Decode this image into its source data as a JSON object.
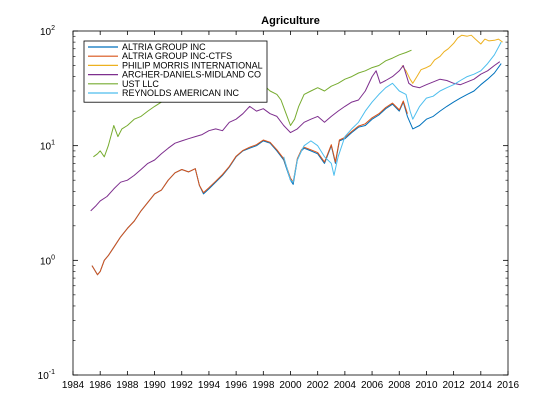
{
  "chart_data": {
    "type": "line",
    "title": "Agriculture",
    "xlabel": "",
    "ylabel": "",
    "y_scale": "log",
    "xlim": [
      1984,
      2016
    ],
    "ylim": [
      0.1,
      100
    ],
    "grid": false,
    "legend_position": "top-left",
    "x_ticks": [
      "1984",
      "1986",
      "1988",
      "1990",
      "1992",
      "1994",
      "1996",
      "1998",
      "2000",
      "2002",
      "2004",
      "2006",
      "2008",
      "2010",
      "2012",
      "2014",
      "2016"
    ],
    "y_ticks": [
      {
        "value": 0.1,
        "base": "10",
        "exp": "-1"
      },
      {
        "value": 1,
        "base": "10",
        "exp": "0"
      },
      {
        "value": 10,
        "base": "10",
        "exp": "1"
      },
      {
        "value": 100,
        "base": "10",
        "exp": "2"
      }
    ],
    "series": [
      {
        "name": "ALTRIA GROUP INC",
        "color": "#0072BD",
        "x": [
          1985.4,
          1985.8,
          1986.0,
          1986.3,
          1986.6,
          1987.0,
          1987.5,
          1988.0,
          1988.5,
          1989.0,
          1989.5,
          1990.0,
          1990.5,
          1991.0,
          1991.5,
          1992.0,
          1992.5,
          1993.0,
          1993.3,
          1993.6,
          1994.0,
          1994.5,
          1995.0,
          1995.5,
          1996.0,
          1996.5,
          1997.0,
          1997.5,
          1998.0,
          1998.5,
          1999.0,
          1999.5,
          2000.0,
          2000.2,
          2000.5,
          2000.8,
          2001.0,
          2001.5,
          2002.0,
          2002.5,
          2003.0,
          2003.3,
          2003.6,
          2004.0,
          2004.5,
          2005.0,
          2005.5,
          2006.0,
          2006.5,
          2007.0,
          2007.5,
          2008.0,
          2008.3,
          2008.6,
          2009.0,
          2009.5,
          2010.0,
          2010.5,
          2011.0,
          2011.5,
          2012.0,
          2012.5,
          2013.0,
          2013.5,
          2014.0,
          2014.5,
          2015.0,
          2015.5
        ],
        "values": [
          0.9,
          0.75,
          0.8,
          1.0,
          1.1,
          1.3,
          1.6,
          1.9,
          2.2,
          2.7,
          3.2,
          3.8,
          4.1,
          5.0,
          5.8,
          6.2,
          5.9,
          6.3,
          4.5,
          3.8,
          4.2,
          4.8,
          5.5,
          6.5,
          8.0,
          9.0,
          9.5,
          10.0,
          11.0,
          10.5,
          9.0,
          7.5,
          5.0,
          4.6,
          7.5,
          9.0,
          9.5,
          9.0,
          8.5,
          7.0,
          10.0,
          7.0,
          11.0,
          11.5,
          13.0,
          14.5,
          15.0,
          17.0,
          18.5,
          21.0,
          23.0,
          20.0,
          24.0,
          18.0,
          14.0,
          15.0,
          17.0,
          18.0,
          20.0,
          22.0,
          24.0,
          26.0,
          28.0,
          30.0,
          34.0,
          38.0,
          43.0,
          52.0
        ]
      },
      {
        "name": "ALTRIA GROUP INC-CTFS",
        "color": "#D95319",
        "x": [
          1985.4,
          1985.8,
          1986.0,
          1986.3,
          1986.6,
          1987.0,
          1987.5,
          1988.0,
          1988.5,
          1989.0,
          1989.5,
          1990.0,
          1990.5,
          1991.0,
          1991.5,
          1992.0,
          1992.5,
          1993.0,
          1993.3,
          1993.6,
          1994.0,
          1994.5,
          1995.0,
          1995.5,
          1996.0,
          1996.5,
          1997.0,
          1997.5,
          1998.0,
          1998.5,
          1999.0,
          1999.5,
          2000.0,
          2000.2,
          2000.5,
          2000.8,
          2001.0,
          2001.5,
          2002.0,
          2002.5,
          2003.0,
          2003.3,
          2003.6,
          2004.0,
          2004.5,
          2005.0,
          2005.5,
          2006.0,
          2006.5,
          2007.0,
          2007.5,
          2008.0,
          2008.3,
          2008.6
        ],
        "values": [
          0.9,
          0.75,
          0.8,
          1.0,
          1.1,
          1.3,
          1.6,
          1.9,
          2.2,
          2.7,
          3.2,
          3.8,
          4.1,
          5.0,
          5.8,
          6.2,
          5.9,
          6.3,
          4.5,
          3.9,
          4.3,
          4.9,
          5.6,
          6.6,
          8.1,
          9.1,
          9.7,
          10.2,
          11.2,
          10.7,
          9.2,
          7.7,
          5.2,
          4.8,
          7.7,
          9.2,
          9.7,
          9.2,
          8.7,
          7.2,
          10.2,
          7.2,
          11.2,
          11.8,
          13.3,
          14.8,
          15.5,
          17.5,
          19.0,
          21.5,
          23.5,
          20.5,
          24.5,
          19.0
        ]
      },
      {
        "name": "PHILIP MORRIS INTERNATIONAL",
        "color": "#EDB120",
        "x": [
          2008.2,
          2008.5,
          2008.8,
          2009.0,
          2009.3,
          2009.6,
          2010.0,
          2010.3,
          2010.6,
          2011.0,
          2011.3,
          2011.6,
          2012.0,
          2012.3,
          2012.6,
          2013.0,
          2013.3,
          2013.6,
          2014.0,
          2014.3,
          2014.6,
          2015.0,
          2015.3,
          2015.6
        ],
        "values": [
          50.0,
          45.0,
          38.0,
          35.0,
          40.0,
          46.0,
          48.0,
          50.0,
          56.0,
          60.0,
          66.0,
          70.0,
          78.0,
          87.0,
          92.0,
          90.0,
          92.0,
          85.0,
          77.0,
          85.0,
          82.0,
          83.0,
          85.0,
          80.0
        ]
      },
      {
        "name": "ARCHER-DANIELS-MIDLAND CO",
        "color": "#7E2F8E",
        "x": [
          1985.3,
          1985.7,
          1986.0,
          1986.5,
          1987.0,
          1987.5,
          1988.0,
          1988.5,
          1989.0,
          1989.5,
          1990.0,
          1990.5,
          1991.0,
          1991.5,
          1992.0,
          1992.5,
          1993.0,
          1993.5,
          1994.0,
          1994.5,
          1995.0,
          1995.5,
          1996.0,
          1996.5,
          1997.0,
          1997.5,
          1998.0,
          1998.5,
          1999.0,
          1999.5,
          2000.0,
          2000.5,
          2001.0,
          2001.5,
          2002.0,
          2002.5,
          2003.0,
          2003.5,
          2004.0,
          2004.5,
          2005.0,
          2005.5,
          2006.0,
          2006.3,
          2006.6,
          2007.0,
          2007.5,
          2008.0,
          2008.3,
          2008.7,
          2009.0,
          2009.5,
          2010.0,
          2010.5,
          2011.0,
          2011.5,
          2012.0,
          2012.5,
          2013.0,
          2013.5,
          2014.0,
          2014.5,
          2015.0,
          2015.4
        ],
        "values": [
          2.7,
          3.0,
          3.3,
          3.6,
          4.2,
          4.8,
          5.0,
          5.5,
          6.2,
          7.0,
          7.5,
          8.5,
          9.5,
          10.5,
          11.0,
          11.5,
          12.0,
          12.5,
          13.5,
          14.0,
          13.5,
          16.0,
          17.0,
          19.0,
          22.0,
          20.0,
          21.0,
          19.0,
          18.0,
          15.0,
          13.0,
          14.0,
          16.0,
          17.0,
          18.0,
          16.0,
          18.0,
          20.0,
          22.0,
          24.0,
          25.0,
          30.0,
          40.0,
          45.0,
          35.0,
          37.0,
          40.0,
          45.0,
          50.0,
          35.0,
          33.0,
          32.0,
          34.0,
          36.0,
          38.0,
          37.0,
          35.0,
          34.0,
          36.0,
          38.0,
          42.0,
          45.0,
          50.0,
          54.0
        ]
      },
      {
        "name": "UST LLC",
        "color": "#77AC30",
        "x": [
          1985.5,
          1985.8,
          1986.0,
          1986.3,
          1986.6,
          1987.0,
          1987.3,
          1987.6,
          1988.0,
          1988.5,
          1989.0,
          1989.5,
          1990.0,
          1990.5,
          1991.0,
          1991.5,
          1992.0,
          1992.5,
          1993.0,
          1993.5,
          1994.0,
          1994.5,
          1995.0,
          1995.5,
          1996.0,
          1996.5,
          1997.0,
          1997.5,
          1998.0,
          1998.5,
          1999.0,
          1999.3,
          1999.6,
          2000.0,
          2000.3,
          2000.6,
          2001.0,
          2001.5,
          2002.0,
          2002.5,
          2003.0,
          2003.5,
          2004.0,
          2004.5,
          2005.0,
          2005.5,
          2006.0,
          2006.5,
          2007.0,
          2007.5,
          2008.0,
          2008.5,
          2008.9
        ],
        "values": [
          8.0,
          8.5,
          9.0,
          8.0,
          10.0,
          15.0,
          12.0,
          14.0,
          15.0,
          17.0,
          18.0,
          20.0,
          22.0,
          24.0,
          26.0,
          30.0,
          32.0,
          30.0,
          26.0,
          28.0,
          30.0,
          28.0,
          32.0,
          35.0,
          32.0,
          30.0,
          35.0,
          32.0,
          34.0,
          30.0,
          28.0,
          25.0,
          20.0,
          15.0,
          17.0,
          22.0,
          28.0,
          30.0,
          32.0,
          30.0,
          33.0,
          35.0,
          38.0,
          40.0,
          43.0,
          45.0,
          48.0,
          50.0,
          55.0,
          58.0,
          62.0,
          65.0,
          68.0
        ]
      },
      {
        "name": "REYNOLDS AMERICAN INC",
        "color": "#4DBEEE",
        "x": [
          1999.5,
          1999.8,
          2000.0,
          2000.2,
          2000.5,
          2000.8,
          2001.0,
          2001.5,
          2002.0,
          2002.5,
          2003.0,
          2003.2,
          2003.5,
          2004.0,
          2004.5,
          2005.0,
          2005.5,
          2006.0,
          2006.5,
          2007.0,
          2007.5,
          2008.0,
          2008.5,
          2008.8,
          2009.0,
          2009.5,
          2010.0,
          2010.5,
          2011.0,
          2011.5,
          2012.0,
          2012.5,
          2013.0,
          2013.5,
          2014.0,
          2014.5,
          2015.0,
          2015.5
        ],
        "values": [
          8.0,
          6.0,
          5.0,
          4.8,
          7.5,
          9.0,
          10.0,
          11.0,
          10.0,
          8.0,
          7.0,
          5.5,
          8.0,
          12.0,
          14.0,
          16.0,
          20.0,
          24.0,
          28.0,
          32.0,
          35.0,
          30.0,
          28.0,
          20.0,
          17.0,
          22.0,
          26.0,
          27.0,
          30.0,
          32.0,
          34.0,
          37.0,
          40.0,
          42.0,
          45.0,
          52.0,
          62.0,
          80.0
        ]
      }
    ]
  }
}
